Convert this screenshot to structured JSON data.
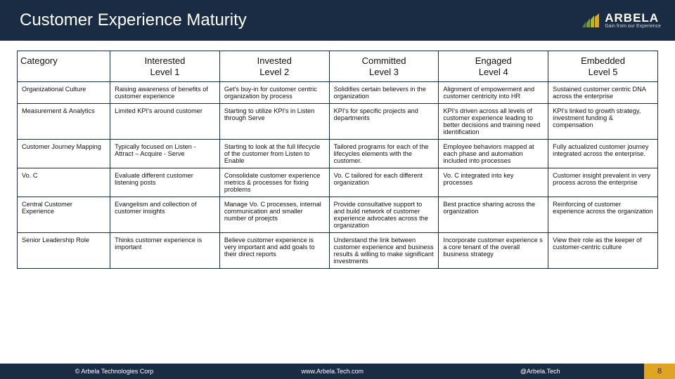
{
  "brand": {
    "name": "ARBELA",
    "tagline": "Gain from our Experience",
    "accent": "#e0a424",
    "bar_colors": [
      "#5f7c46",
      "#7b9a43",
      "#a9b83a",
      "#e0a424"
    ]
  },
  "title": "Customer Experience Maturity",
  "columns": [
    {
      "label": "Category",
      "sub": ""
    },
    {
      "label": "Interested",
      "sub": "Level 1"
    },
    {
      "label": "Invested",
      "sub": "Level 2"
    },
    {
      "label": "Committed",
      "sub": "Level 3"
    },
    {
      "label": "Engaged",
      "sub": "Level 4"
    },
    {
      "label": "Embedded",
      "sub": "Level 5"
    }
  ],
  "rows": [
    {
      "category": "Organizational Culture",
      "cells": [
        "Raising awareness of benefits of customer experience",
        "Get's buy-in for customer centric organization by process",
        "Solidifies certain believers in the organization",
        "Alignment of empowerment and customer centricity into HR",
        "Sustained customer centric DNA across the enterprise"
      ]
    },
    {
      "category": "Measurement & Analytics",
      "cells": [
        "Limited KPI's around customer",
        "Starting to utilize KPI's in Listen through Serve",
        "KPI's for specific projects and departments",
        "KPI's driven across all levels of customer experience leading to better decisions and training need identification",
        "KPI's linked to growth strategy, investment funding & compensation"
      ]
    },
    {
      "category": "Customer Journey Mapping",
      "cells": [
        "Typically focused on Listen - Attract – Acquire - Serve",
        "Starting to look at the full lifecycle of the customer from Listen to Enable",
        "Tailored programs for each of the lifecycles elements with the customer.",
        "Employee behaviors mapped at each phase and automation included into processes",
        "Fully actualized customer journey integrated across the enterprise."
      ]
    },
    {
      "category": "Vo. C",
      "cells": [
        "Evaluate different customer listening posts",
        "Consolidate customer experience metrics & processes for fixing problems",
        "Vo. C tailored for each different organization",
        "Vo. C integrated into key processes",
        "Customer insight prevalent in very process across the enterprise"
      ]
    },
    {
      "category": "Central Customer Experience",
      "cells": [
        "Evangelism and collection of customer insights",
        "Manage Vo. C processes, internal communication and smaller number of proejcts",
        "Provide consultative support to and build network of customer experience advocates across the organization",
        "Best practice sharing across the organization",
        "Reinforcing of customer experience across the organization"
      ]
    },
    {
      "category": "Senior Leadership Role",
      "cells": [
        "Thinks customer experience is important",
        "Believe customer experience is very important and add goals to their direct reports",
        "Understand the link between customer experience and business results & willing to make significant investments",
        "Incorporate customer experience s a core tenant of the overall business strategy",
        "View their role as the keeper of customer-centric culture"
      ]
    }
  ],
  "footer": {
    "left": "© Arbela Technologies Corp",
    "center": "www.Arbela.Tech.com",
    "right": "@Arbela.Tech",
    "page": "8"
  }
}
